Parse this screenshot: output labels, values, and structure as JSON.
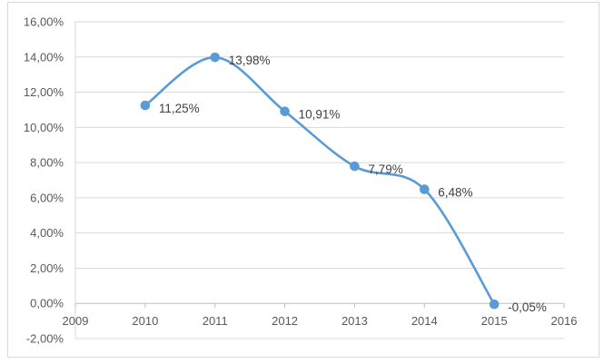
{
  "chart_data": {
    "type": "scatter",
    "mode": "smooth-line-with-markers",
    "series": [
      {
        "x": [
          2010,
          2011,
          2012,
          2013,
          2014,
          2015
        ],
        "y": [
          11.25,
          13.98,
          10.91,
          7.79,
          6.48,
          -0.05
        ],
        "labels": [
          "11,25%",
          "13,98%",
          "10,91%",
          "7,79%",
          "6,48%",
          "-0,05%"
        ],
        "color": "#5b9bd5"
      }
    ],
    "xlim": [
      2009,
      2016
    ],
    "ylim": [
      -2,
      16
    ],
    "xticks": [
      "2009",
      "2010",
      "2011",
      "2012",
      "2013",
      "2014",
      "2015",
      "2016"
    ],
    "yticks": [
      "-2,00%",
      "0,00%",
      "2,00%",
      "4,00%",
      "6,00%",
      "8,00%",
      "10,00%",
      "12,00%",
      "14,00%",
      "16,00%"
    ],
    "grid": "horizontal",
    "legend": "none",
    "colors": {
      "line": "#5b9bd5",
      "grid": "#d9d9d9",
      "axis": "#bfbfbf",
      "text": "#595959"
    }
  }
}
